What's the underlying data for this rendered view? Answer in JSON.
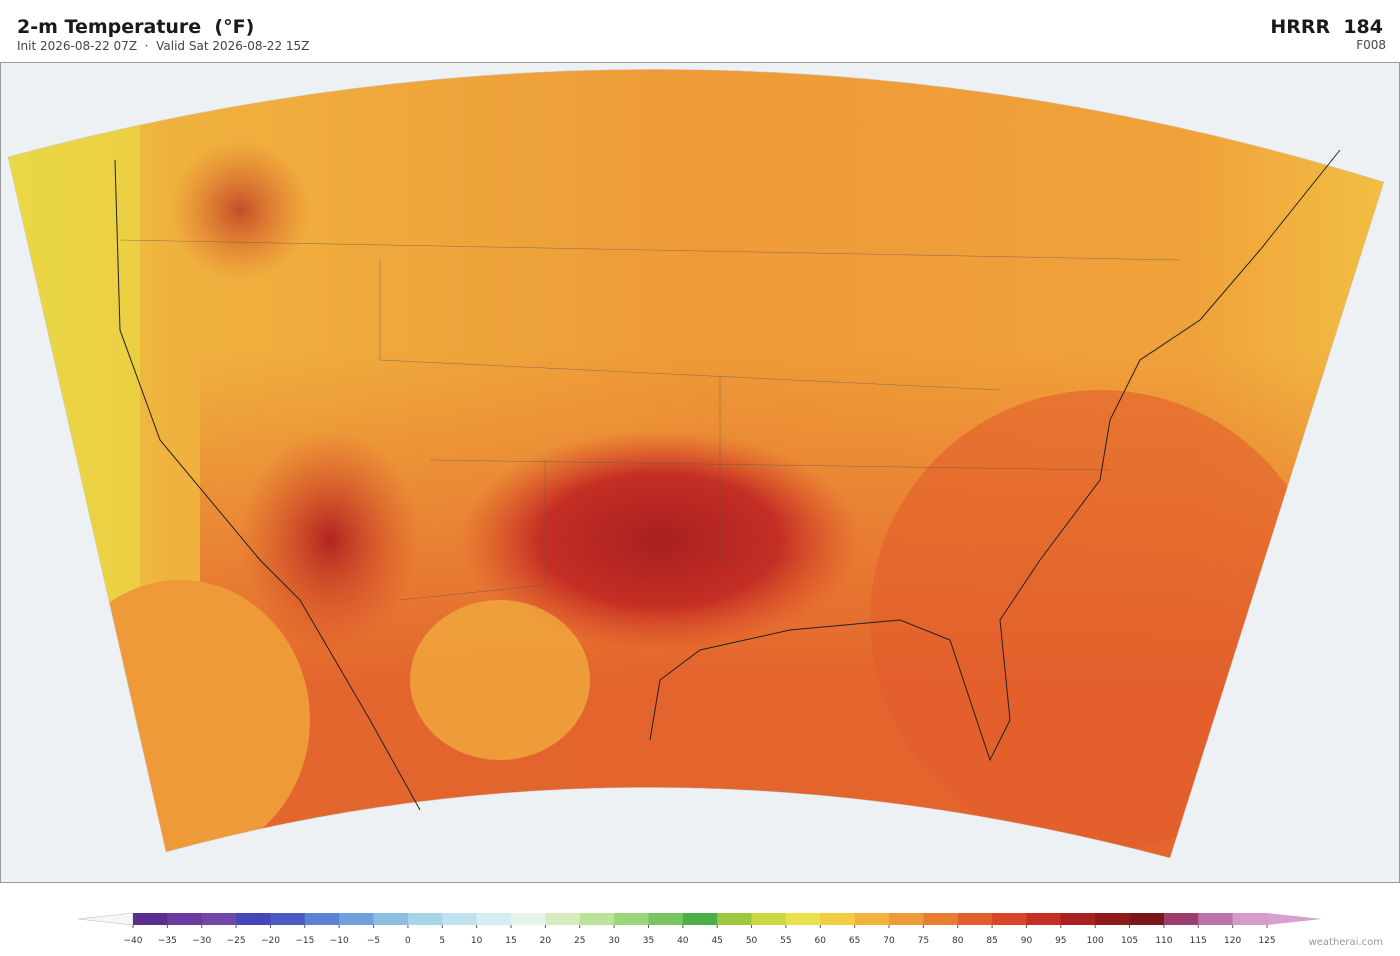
{
  "header": {
    "title": "2-m Temperature  (°F)",
    "subtitle": "Init 2026-08-22 07Z  ·  Valid Sat 2026-08-22 15Z",
    "model": "HRRR  184",
    "forecast_hour": "F008"
  },
  "colorbar": {
    "ticks": [
      {
        "value": -40,
        "label": "−40"
      },
      {
        "value": -35,
        "label": "−35"
      },
      {
        "value": -30,
        "label": "−30"
      },
      {
        "value": -25,
        "label": "−25"
      },
      {
        "value": -20,
        "label": "−20"
      },
      {
        "value": -15,
        "label": "−15"
      },
      {
        "value": -10,
        "label": "−10"
      },
      {
        "value": -5,
        "label": "−5"
      },
      0,
      5,
      10,
      15,
      20,
      25,
      30,
      35,
      40,
      45,
      50,
      55,
      60,
      65,
      70,
      75,
      80,
      85,
      90,
      95,
      100,
      105,
      110,
      115,
      120,
      125
    ],
    "colors": [
      "#5a2d91",
      "#6a3aa0",
      "#7048a8",
      "#4646b8",
      "#4a5cc4",
      "#5a82d0",
      "#6fa0dc",
      "#8cbce0",
      "#a8d4e8",
      "#c0e2ee",
      "#d6eef2",
      "#e4f4e8",
      "#d4ecc0",
      "#bce29a",
      "#9cd47a",
      "#78c460",
      "#4caf48",
      "#9cc840",
      "#cad844",
      "#eae04a",
      "#f2cc44",
      "#f2b23e",
      "#ee9a38",
      "#e87e32",
      "#e25e2c",
      "#d84428",
      "#c42e24",
      "#a82020",
      "#8e1a1c",
      "#7a161a",
      "#9c3e6c",
      "#ba72a8",
      "#d69cc8"
    ],
    "under_color": "#f4f6f8",
    "over_color": "#d8a0cc"
  },
  "watermark": "weatherai.com"
}
